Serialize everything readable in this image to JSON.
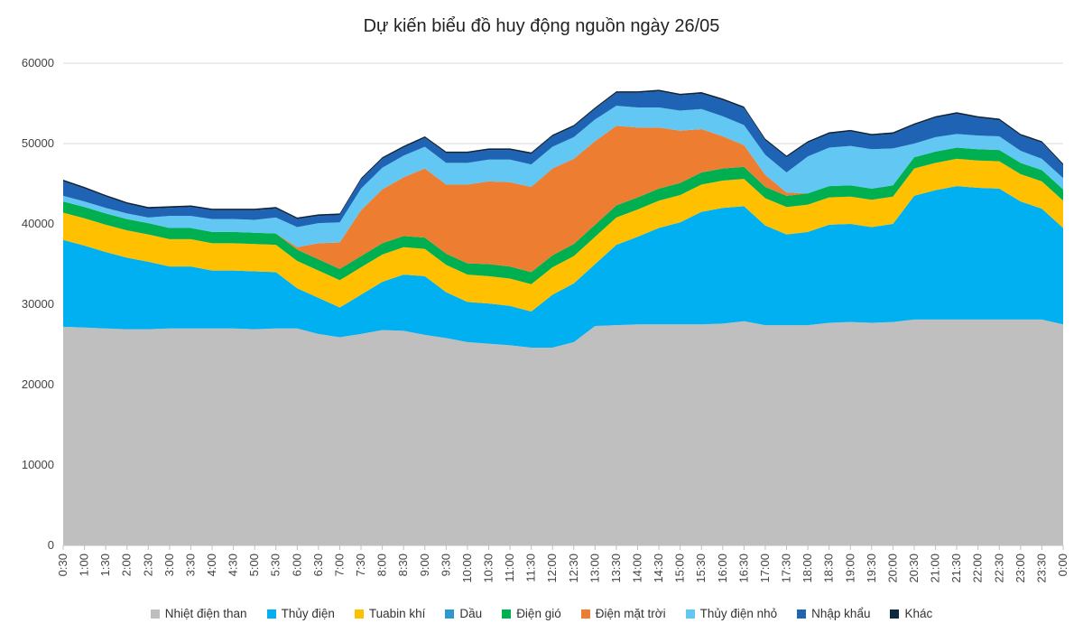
{
  "chart_data": {
    "type": "area",
    "stacked": true,
    "title": "Dự kiến biểu đồ huy động nguồn ngày 26/05",
    "xlabel": "",
    "ylabel": "",
    "ylim": [
      0,
      60000
    ],
    "yticks": [
      0,
      10000,
      20000,
      30000,
      40000,
      50000,
      60000
    ],
    "grid": true,
    "legend_position": "bottom",
    "categories": [
      "0:30",
      "1:00",
      "1:30",
      "2:00",
      "2:30",
      "3:00",
      "3:30",
      "4:00",
      "4:30",
      "5:00",
      "5:30",
      "6:00",
      "6:30",
      "7:00",
      "7:30",
      "8:00",
      "8:30",
      "9:00",
      "9:30",
      "10:00",
      "10:30",
      "11:00",
      "11:30",
      "12:00",
      "12:30",
      "13:00",
      "13:30",
      "14:00",
      "14:30",
      "15:00",
      "15:30",
      "16:00",
      "16:30",
      "17:00",
      "17:30",
      "18:00",
      "18:30",
      "19:00",
      "19:30",
      "20:00",
      "20:30",
      "21:00",
      "21:30",
      "22:00",
      "22:30",
      "23:00",
      "23:30",
      "0:00"
    ],
    "series": [
      {
        "name": "Nhiệt điện than",
        "color": "#bfbfbf",
        "values": [
          27200,
          27100,
          27000,
          26900,
          26900,
          27000,
          27000,
          27000,
          27000,
          26900,
          27000,
          27000,
          26300,
          25900,
          26300,
          26800,
          26700,
          26200,
          25800,
          25300,
          25100,
          24900,
          24600,
          24600,
          25300,
          27300,
          27400,
          27500,
          27500,
          27500,
          27500,
          27600,
          27900,
          27400,
          27400,
          27400,
          27700,
          27800,
          27700,
          27800,
          28100,
          28100,
          28100,
          28100,
          28100,
          28100,
          28100,
          27500
        ]
      },
      {
        "name": "Thủy điện",
        "color": "#00b0f0",
        "values": [
          10800,
          10200,
          9500,
          8900,
          8400,
          7700,
          7700,
          7200,
          7200,
          7200,
          7000,
          5000,
          4500,
          3700,
          4900,
          6000,
          7000,
          7300,
          5700,
          5000,
          5000,
          4900,
          4500,
          6600,
          7300,
          7700,
          10000,
          10900,
          12000,
          12700,
          14000,
          14400,
          14300,
          12400,
          11300,
          11600,
          12200,
          12200,
          11900,
          12200,
          15400,
          16100,
          16600,
          16400,
          16300,
          14700,
          13800,
          12000
        ]
      },
      {
        "name": "Tuabin khí",
        "color": "#ffc000",
        "values": [
          3400,
          3400,
          3400,
          3400,
          3400,
          3400,
          3400,
          3400,
          3400,
          3400,
          3400,
          3400,
          3400,
          3400,
          3400,
          3400,
          3400,
          3400,
          3400,
          3400,
          3400,
          3400,
          3400,
          3400,
          3400,
          3400,
          3400,
          3400,
          3400,
          3400,
          3400,
          3400,
          3400,
          3400,
          3400,
          3400,
          3400,
          3400,
          3400,
          3400,
          3400,
          3400,
          3400,
          3400,
          3400,
          3400,
          3400,
          3400
        ]
      },
      {
        "name": "Dầu",
        "color": "#2e96d2",
        "values": [
          0,
          0,
          0,
          0,
          0,
          0,
          0,
          0,
          0,
          0,
          0,
          0,
          0,
          0,
          0,
          0,
          0,
          0,
          0,
          0,
          0,
          0,
          0,
          0,
          0,
          0,
          0,
          0,
          0,
          0,
          0,
          0,
          0,
          0,
          0,
          0,
          0,
          0,
          0,
          0,
          0,
          0,
          0,
          0,
          0,
          0,
          0,
          0
        ]
      },
      {
        "name": "Điện gió",
        "color": "#00b050",
        "values": [
          1400,
          1400,
          1400,
          1400,
          1400,
          1400,
          1400,
          1400,
          1400,
          1400,
          1400,
          1400,
          1400,
          1400,
          1400,
          1400,
          1400,
          1400,
          1400,
          1400,
          1500,
          1500,
          1500,
          1500,
          1500,
          1500,
          1500,
          1500,
          1500,
          1500,
          1500,
          1500,
          1500,
          1400,
          1400,
          1400,
          1400,
          1400,
          1400,
          1400,
          1400,
          1400,
          1400,
          1400,
          1400,
          1400,
          1400,
          1400
        ]
      },
      {
        "name": "Điện mặt trời",
        "color": "#ed7d31",
        "values": [
          0,
          0,
          0,
          0,
          0,
          0,
          0,
          0,
          0,
          0,
          0,
          300,
          2000,
          3300,
          5700,
          6700,
          7300,
          8600,
          8600,
          9800,
          10300,
          10500,
          10600,
          10800,
          10600,
          10400,
          9900,
          8700,
          7600,
          6500,
          5400,
          4000,
          2700,
          1500,
          400,
          0,
          0,
          0,
          0,
          0,
          0,
          0,
          0,
          0,
          0,
          0,
          0,
          0
        ]
      },
      {
        "name": "Thủy điện nhỏ",
        "color": "#62c7f2",
        "values": [
          700,
          700,
          700,
          700,
          700,
          1500,
          1500,
          1600,
          1600,
          1600,
          2000,
          2500,
          2500,
          2500,
          2700,
          2700,
          2700,
          2700,
          2700,
          2700,
          2700,
          2800,
          2800,
          2700,
          2700,
          2700,
          2500,
          2500,
          2500,
          2500,
          2500,
          2500,
          2500,
          2500,
          2500,
          4600,
          4800,
          4900,
          4900,
          4600,
          1700,
          1800,
          1700,
          1700,
          1700,
          1500,
          1400,
          1400
        ]
      },
      {
        "name": "Nhập khẩu",
        "color": "#1f63b4",
        "values": [
          1800,
          1600,
          1400,
          1200,
          1100,
          1000,
          1100,
          1100,
          1100,
          1200,
          1100,
          1000,
          900,
          900,
          1100,
          1100,
          1000,
          1100,
          1200,
          1200,
          1200,
          1200,
          1300,
          1300,
          1300,
          1300,
          1600,
          1800,
          2000,
          1900,
          1900,
          2000,
          2100,
          1800,
          1900,
          1700,
          1700,
          1800,
          1700,
          1800,
          2300,
          2400,
          2500,
          2200,
          2000,
          1900,
          2000,
          1600
        ]
      },
      {
        "name": "Khác",
        "color": "#0e2841",
        "values": [
          200,
          200,
          200,
          200,
          200,
          200,
          200,
          200,
          200,
          200,
          200,
          200,
          200,
          200,
          200,
          200,
          200,
          200,
          200,
          200,
          200,
          200,
          200,
          200,
          200,
          200,
          200,
          200,
          200,
          200,
          200,
          200,
          200,
          200,
          200,
          200,
          200,
          200,
          200,
          200,
          200,
          200,
          200,
          200,
          200,
          200,
          200,
          200
        ]
      }
    ]
  }
}
